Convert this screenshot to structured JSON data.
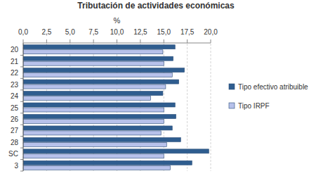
{
  "chart_data": {
    "type": "bar",
    "orientation": "horizontal",
    "title": "Tributación de actividades económicas",
    "x_label": "%",
    "categories": [
      "20",
      "21",
      "22",
      "23",
      "24",
      "25",
      "26",
      "27",
      "28",
      "SC",
      "3"
    ],
    "series": [
      {
        "name": "Tipo efectivo atribuible",
        "color": "#2f5d8f",
        "values": [
          16.2,
          16.0,
          17.2,
          16.6,
          14.9,
          16.2,
          16.3,
          15.9,
          16.8,
          19.8,
          18.0
        ]
      },
      {
        "name": "Tipo IRPF",
        "color": "#b7c1ea",
        "values": [
          14.9,
          15.0,
          15.9,
          15.2,
          13.6,
          15.0,
          15.0,
          14.7,
          15.3,
          15.0,
          15.7
        ]
      }
    ],
    "xlim": [
      0,
      20
    ],
    "xticks": [
      {
        "value": 0,
        "label": "0,0"
      },
      {
        "value": 2.5,
        "label": "2,5"
      },
      {
        "value": 5,
        "label": "5,0"
      },
      {
        "value": 7.5,
        "label": "7,5"
      },
      {
        "value": 10,
        "label": "10,0"
      },
      {
        "value": 12.5,
        "label": "12,5"
      },
      {
        "value": 15,
        "label": "15,0"
      },
      {
        "value": 17.5,
        "label": "17,5"
      },
      {
        "value": 20,
        "label": "20,0"
      }
    ],
    "grid": true,
    "legend": "right"
  }
}
